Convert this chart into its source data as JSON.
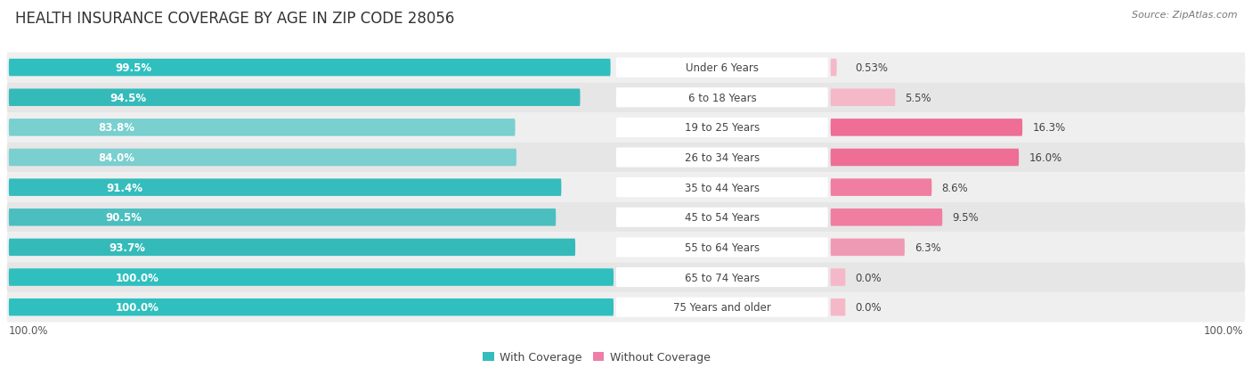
{
  "title": "HEALTH INSURANCE COVERAGE BY AGE IN ZIP CODE 28056",
  "source": "Source: ZipAtlas.com",
  "categories": [
    "Under 6 Years",
    "6 to 18 Years",
    "19 to 25 Years",
    "26 to 34 Years",
    "35 to 44 Years",
    "45 to 54 Years",
    "55 to 64 Years",
    "65 to 74 Years",
    "75 Years and older"
  ],
  "with_coverage": [
    99.5,
    94.5,
    83.8,
    84.0,
    91.4,
    90.5,
    93.7,
    100.0,
    100.0
  ],
  "without_coverage": [
    0.53,
    5.5,
    16.3,
    16.0,
    8.6,
    9.5,
    6.3,
    0.0,
    0.0
  ],
  "with_coverage_labels": [
    "99.5%",
    "94.5%",
    "83.8%",
    "84.0%",
    "91.4%",
    "90.5%",
    "93.7%",
    "100.0%",
    "100.0%"
  ],
  "without_coverage_labels": [
    "0.53%",
    "5.5%",
    "16.3%",
    "16.0%",
    "8.6%",
    "9.5%",
    "6.3%",
    "0.0%",
    "0.0%"
  ],
  "teal_colors": [
    "#2FBFBF",
    "#35BABA",
    "#7ACFCF",
    "#7ACFCF",
    "#35BCBC",
    "#4BBFBF",
    "#35BABA",
    "#2FBFBF",
    "#2FBFBF"
  ],
  "pink_colors": [
    "#F5B8C8",
    "#F5B8C8",
    "#EE6E96",
    "#EE6E96",
    "#EF7EA0",
    "#EF7EA0",
    "#EF9AB5",
    "#F5B8C8",
    "#F5B8C8"
  ],
  "row_bg_even": "#EFEFEF",
  "row_bg_odd": "#E6E6E6",
  "title_fontsize": 12,
  "label_fontsize": 8.5,
  "cat_fontsize": 8.5,
  "legend_fontsize": 9,
  "source_fontsize": 8,
  "bottom_label": "100.0%"
}
